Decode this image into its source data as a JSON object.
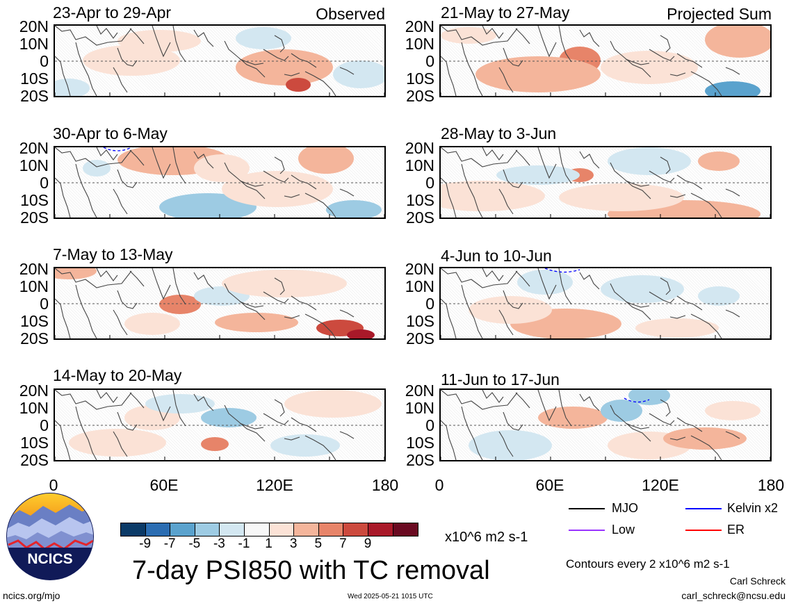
{
  "colors": {
    "red_scale": [
      "#fbe2d6",
      "#f4b59b",
      "#e78469",
      "#cc4a3e",
      "#a91929",
      "#6a0a21"
    ],
    "blue_scale": [
      "#d3e7f1",
      "#9dcbe3",
      "#5aa2cd",
      "#2b6db2",
      "#0b3a67"
    ],
    "neutral": "#f7f7f7",
    "coast": "#444444",
    "kelvin": "#0000ff",
    "mjo": "#000000",
    "low": "#9933ff",
    "er": "#ff0000"
  },
  "panels_left": [
    {
      "title": "23-Apr to 29-Apr",
      "tag": "Observed"
    },
    {
      "title": "30-Apr to 6-May",
      "tag": ""
    },
    {
      "title": "7-May to 13-May",
      "tag": ""
    },
    {
      "title": "14-May to 20-May",
      "tag": ""
    }
  ],
  "panels_right": [
    {
      "title": "21-May to 27-May",
      "tag": "Projected Sum"
    },
    {
      "title": "28-May to 3-Jun",
      "tag": ""
    },
    {
      "title": "4-Jun to 10-Jun",
      "tag": ""
    },
    {
      "title": "11-Jun to 17-Jun",
      "tag": ""
    }
  ],
  "lat_labels": [
    "20N",
    "10N",
    "0",
    "10S",
    "20S"
  ],
  "lon_labels": [
    "0",
    "60E",
    "120E",
    "180"
  ],
  "colorbar": {
    "ticks": [
      "-9",
      "-7",
      "-5",
      "-3",
      "-1",
      "1",
      "3",
      "5",
      "7",
      "9"
    ],
    "units": "x10^6 m2 s-1"
  },
  "legend": {
    "mjo": "MJO",
    "kelvin": "Kelvin x2",
    "low": "Low",
    "er": "ER",
    "contours": "Contours every 2 x10^6 m2 s-1"
  },
  "title": "7-day PSI850 with TC removal",
  "logo_text": "NCICS",
  "footer": {
    "url": "ncics.org/mjo",
    "timestamp": "Wed 2025-05-21 1015 UTC",
    "author": "Carl Schreck",
    "email": "carl_schreck@ncsu.edu"
  }
}
